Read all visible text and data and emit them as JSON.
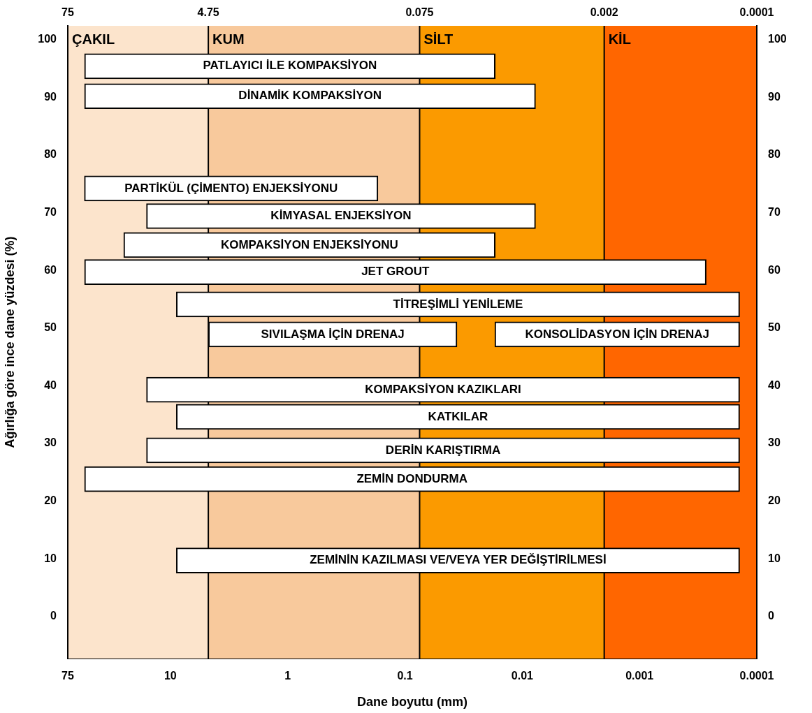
{
  "chart_data": {
    "type": "bar",
    "orientation": "horizontal",
    "log": "x",
    "xlabel": "Dane boyutu (mm)",
    "ylabel": "Ağırlığa göre ince dane yüzdesi (%)",
    "xlim": [
      75,
      0.0001
    ],
    "xticks": [
      75,
      10,
      1,
      0.1,
      0.01,
      0.001,
      0.0001
    ],
    "ref_lines": [
      {
        "axis": "x",
        "value": 75,
        "label": "75"
      },
      {
        "axis": "x",
        "value": 4.75,
        "label": "4.75"
      },
      {
        "axis": "x",
        "value": 0.075,
        "label": "0.075"
      },
      {
        "axis": "x",
        "value": 0.002,
        "label": "0.002"
      },
      {
        "axis": "x",
        "value": 0.0001,
        "label": "0.0001"
      }
    ],
    "ylim": [
      -7.3,
      102.4
    ],
    "yticks": [
      0,
      10,
      20,
      30,
      40,
      50,
      60,
      70,
      80,
      90,
      100
    ],
    "y2lim": [
      -7.3,
      102.4
    ],
    "y2ticks": [
      0,
      10,
      20,
      30,
      40,
      50,
      60,
      70,
      80,
      90,
      100
    ],
    "bands": [
      {
        "axis": "x",
        "from": 75,
        "to": 4.75,
        "label": "ÇAKIL",
        "color": "#fce4cc"
      },
      {
        "axis": "x",
        "from": 4.75,
        "to": 0.075,
        "label": "KUM",
        "color": "#f8c99c"
      },
      {
        "axis": "x",
        "from": 0.075,
        "to": 0.002,
        "label": "SİLT",
        "color": "#fb9a00"
      },
      {
        "axis": "x",
        "from": 0.002,
        "to": 0.0001,
        "label": "KİL",
        "color": "#ff6600"
      }
    ],
    "series": [
      {
        "name": "PATLAYICI İLE KOMPAKSİYON",
        "color": "#ffffff",
        "x": [
          95.4
        ],
        "base": [
          0.017
        ],
        "values": [
          54
        ]
      },
      {
        "name": "DİNAMİK KOMPAKSİYON",
        "color": "#ffffff",
        "x": [
          90.2
        ],
        "base": [
          0.0077
        ],
        "values": [
          54
        ]
      },
      {
        "name": "PARTİKÜL (ÇİMENTO) ENJEKSİYONU",
        "color": "#ffffff",
        "x": [
          74.2
        ],
        "base": [
          0.17
        ],
        "values": [
          54
        ]
      },
      {
        "name": "KİMYASAL ENJEKSİYON",
        "color": "#ffffff",
        "x": [
          69.4
        ],
        "base": [
          0.0077
        ],
        "values": [
          16
        ]
      },
      {
        "name": "KOMPAKSİYON ENJEKSİYONU",
        "color": "#ffffff",
        "x": [
          64.4
        ],
        "base": [
          0.017
        ],
        "values": [
          25
        ]
      },
      {
        "name": "JET GROUT",
        "color": "#ffffff",
        "x": [
          59.7
        ],
        "base": [
          0.00027
        ],
        "values": [
          54
        ]
      },
      {
        "name": "TİTREŞİMLİ YENİLEME",
        "color": "#ffffff",
        "x": [
          54.1
        ],
        "base": [
          0.00014
        ],
        "values": [
          8.9
        ]
      },
      {
        "name": "SIVILAŞMA İÇİN DRENAJ",
        "color": "#ffffff",
        "x": [
          48.9
        ],
        "base": [
          0.036
        ],
        "values": [
          4.7
        ]
      },
      {
        "name": "KONSOLİDASYON İÇİN DRENAJ",
        "color": "#ffffff",
        "x": [
          48.9
        ],
        "base": [
          0.00014
        ],
        "values": [
          0.017
        ]
      },
      {
        "name": "KOMPAKSİYON KAZIKLARI",
        "color": "#ffffff",
        "x": [
          39.3
        ],
        "base": [
          0.00014
        ],
        "values": [
          16
        ]
      },
      {
        "name": "KATKILAR",
        "color": "#ffffff",
        "x": [
          34.6
        ],
        "base": [
          0.00014
        ],
        "values": [
          8.9
        ]
      },
      {
        "name": "DERİN KARIŞTIRMA",
        "color": "#ffffff",
        "x": [
          28.8
        ],
        "base": [
          0.00014
        ],
        "values": [
          16
        ]
      },
      {
        "name": "ZEMİN DONDURMA",
        "color": "#ffffff",
        "x": [
          23.8
        ],
        "base": [
          0.00014
        ],
        "values": [
          54
        ]
      },
      {
        "name": "ZEMİNİN KAZILMASI VE/VEYA YER DEĞİŞTİRİLMESİ",
        "color": "#ffffff",
        "x": [
          9.7
        ],
        "base": [
          0.00014
        ],
        "values": [
          8.9
        ]
      }
    ]
  }
}
